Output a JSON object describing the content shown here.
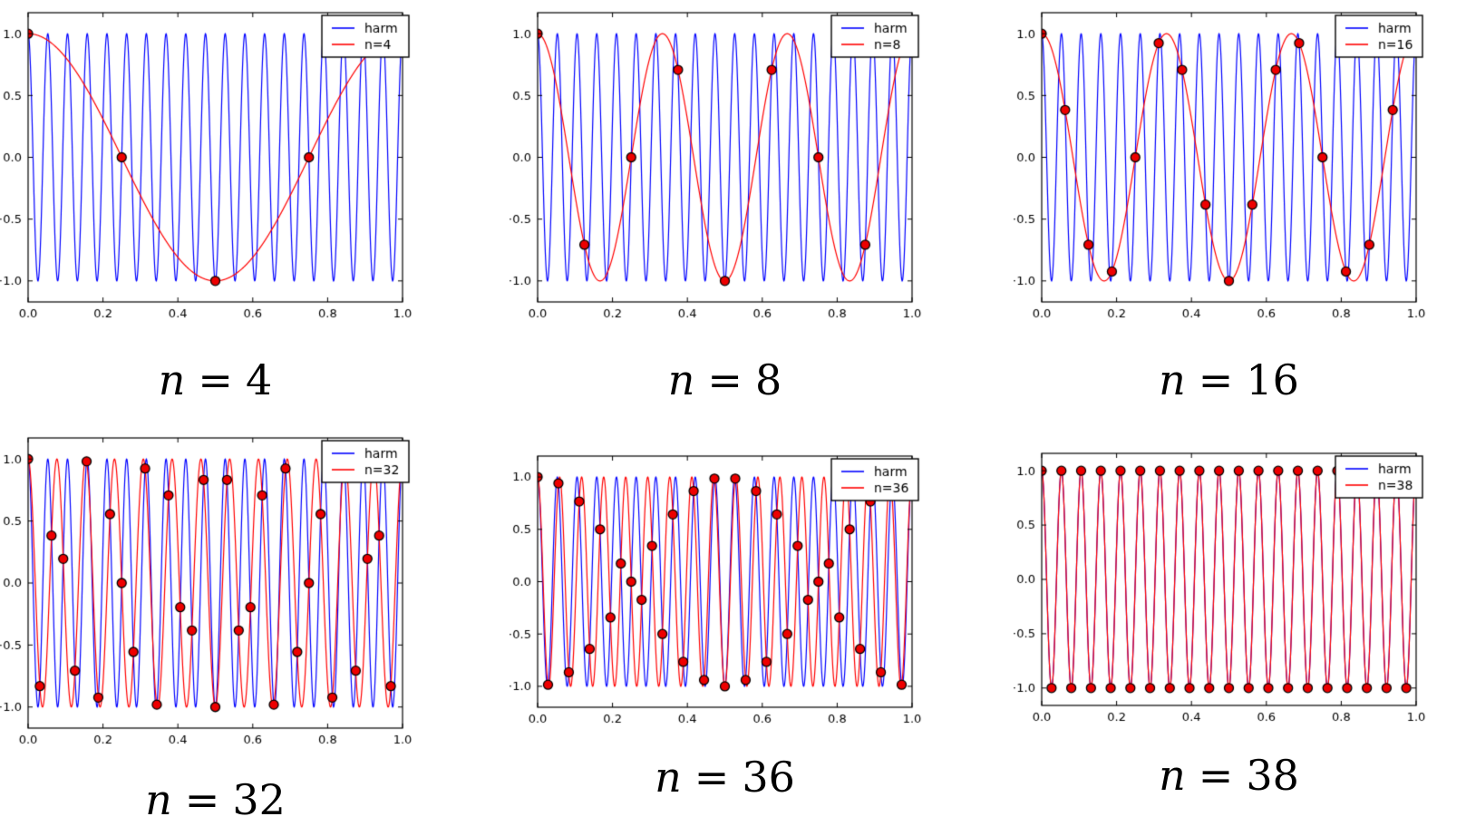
{
  "figure": {
    "background": "#ffffff",
    "harm_color": "#0000ff",
    "alias_color": "#ff0000",
    "marker_face": "#ee0000",
    "marker_edge": "#000000",
    "frame_color": "#000000",
    "tick_label_color": "#000000"
  },
  "chart_data": [
    {
      "type": "line",
      "caption": {
        "symbol": "n",
        "equals": "=",
        "value": "4"
      },
      "legend": {
        "position": "upper right",
        "entries": [
          {
            "label": "harm",
            "series": "harm"
          },
          {
            "label": "n=4",
            "series": "alias"
          }
        ]
      },
      "harm": {
        "name": "harm",
        "func": "cos(2*pi*f*x)",
        "freq": 19,
        "amplitude": 1
      },
      "alias": {
        "name": "n=4",
        "func": "cos(2*pi*f*x)",
        "freq": 1,
        "amplitude": 1
      },
      "n_samples": 4,
      "samples_x_rule": "x_k = k/n, k = 0..n",
      "samples_y": [
        1,
        0,
        -1,
        0,
        1
      ],
      "xlim": [
        0,
        1
      ],
      "ylim": [
        -1.17,
        1.17
      ],
      "grid": false,
      "x_tick_values": [
        0,
        0.2,
        0.4,
        0.6,
        0.8,
        1.0
      ],
      "x_tick_labels": [
        "0.0",
        "0.2",
        "0.4",
        "0.6",
        "0.8",
        "1.0"
      ],
      "y_tick_values": [
        1.0,
        0.5,
        0.0,
        -0.5,
        -1.0
      ],
      "y_tick_labels": [
        "1.0",
        "0.5",
        "0.0",
        "−0.5",
        "−1.0"
      ]
    },
    {
      "type": "line",
      "caption": {
        "symbol": "n",
        "equals": "=",
        "value": "8"
      },
      "legend": {
        "position": "upper right",
        "entries": [
          {
            "label": "harm",
            "series": "harm"
          },
          {
            "label": "n=8",
            "series": "alias"
          }
        ]
      },
      "harm": {
        "name": "harm",
        "func": "cos(2*pi*f*x)",
        "freq": 19,
        "amplitude": 1
      },
      "alias": {
        "name": "n=8",
        "func": "cos(2*pi*f*x)",
        "freq": 3,
        "amplitude": 1
      },
      "n_samples": 8,
      "samples_x_rule": "x_k = k/n, k = 0..n",
      "samples_y": [
        1,
        -0.7071,
        0,
        0.7071,
        -1,
        0.7071,
        0,
        -0.7071,
        1
      ],
      "xlim": [
        0,
        1
      ],
      "ylim": [
        -1.17,
        1.17
      ],
      "grid": false,
      "x_tick_values": [
        0,
        0.2,
        0.4,
        0.6,
        0.8,
        1.0
      ],
      "x_tick_labels": [
        "0.0",
        "0.2",
        "0.4",
        "0.6",
        "0.8",
        "1.0"
      ],
      "y_tick_values": [
        1.0,
        0.5,
        0.0,
        -0.5,
        -1.0
      ],
      "y_tick_labels": [
        "1.0",
        "0.5",
        "0.0",
        "−0.5",
        "−1.0"
      ]
    },
    {
      "type": "line",
      "caption": {
        "symbol": "n",
        "equals": "=",
        "value": "16"
      },
      "legend": {
        "position": "upper right",
        "entries": [
          {
            "label": "harm",
            "series": "harm"
          },
          {
            "label": "n=16",
            "series": "alias"
          }
        ]
      },
      "harm": {
        "name": "harm",
        "func": "cos(2*pi*f*x)",
        "freq": 19,
        "amplitude": 1
      },
      "alias": {
        "name": "n=16",
        "func": "cos(2*pi*f*x)",
        "freq": 3,
        "amplitude": 1
      },
      "n_samples": 16,
      "samples_x_rule": "x_k = k/n, k = 0..n",
      "samples_y": [
        1,
        0.3827,
        -0.7071,
        -0.9239,
        0,
        0.9239,
        0.7071,
        -0.3827,
        -1,
        -0.3827,
        0.7071,
        0.9239,
        0,
        -0.9239,
        -0.7071,
        0.3827,
        1
      ],
      "xlim": [
        0,
        1
      ],
      "ylim": [
        -1.17,
        1.17
      ],
      "grid": false,
      "x_tick_values": [
        0,
        0.2,
        0.4,
        0.6,
        0.8,
        1.0
      ],
      "x_tick_labels": [
        "0.0",
        "0.2",
        "0.4",
        "0.6",
        "0.8",
        "1.0"
      ],
      "y_tick_values": [
        1.0,
        0.5,
        0.0,
        -0.5,
        -1.0
      ],
      "y_tick_labels": [
        "1.0",
        "0.5",
        "0.0",
        "−0.5",
        "−1.0"
      ]
    },
    {
      "type": "line",
      "caption": {
        "symbol": "n",
        "equals": "=",
        "value": "32"
      },
      "legend": {
        "position": "upper right",
        "entries": [
          {
            "label": "harm",
            "series": "harm"
          },
          {
            "label": "n=32",
            "series": "alias"
          }
        ]
      },
      "harm": {
        "name": "harm",
        "func": "cos(2*pi*f*x)",
        "freq": 19,
        "amplitude": 1
      },
      "alias": {
        "name": "n=32",
        "func": "cos(2*pi*f*x)",
        "freq": 13,
        "amplitude": 1
      },
      "n_samples": 32,
      "samples_x_rule": "x_k = k/n, k = 0..n",
      "samples_y": [
        1,
        -0.8315,
        0.3827,
        0.1951,
        -0.7071,
        0.9808,
        -0.9239,
        0.5556,
        0,
        -0.5556,
        0.9239,
        -0.9808,
        0.7071,
        -0.1951,
        -0.3827,
        0.8315,
        -1,
        0.8315,
        -0.3827,
        -0.1951,
        0.7071,
        -0.9808,
        0.9239,
        -0.5556,
        0,
        0.5556,
        -0.9239,
        0.9808,
        -0.7071,
        0.1951,
        0.3827,
        -0.8315,
        1
      ],
      "xlim": [
        0,
        1
      ],
      "ylim": [
        -1.17,
        1.17
      ],
      "grid": false,
      "x_tick_values": [
        0,
        0.2,
        0.4,
        0.6,
        0.8,
        1.0
      ],
      "x_tick_labels": [
        "0.0",
        "0.2",
        "0.4",
        "0.6",
        "0.8",
        "1.0"
      ],
      "y_tick_values": [
        1.0,
        0.5,
        0.0,
        -0.5,
        -1.0
      ],
      "y_tick_labels": [
        "1.0",
        "0.5",
        "0.0",
        "−0.5",
        "−1.0"
      ]
    },
    {
      "type": "line",
      "caption": {
        "symbol": "n",
        "equals": "=",
        "value": "36"
      },
      "legend": {
        "position": "upper right",
        "entries": [
          {
            "label": "harm",
            "series": "harm"
          },
          {
            "label": "n=36",
            "series": "alias"
          }
        ]
      },
      "harm": {
        "name": "harm",
        "func": "cos(2*pi*f*x)",
        "freq": 19,
        "amplitude": 1
      },
      "alias": {
        "name": "n=36",
        "func": "cos(2*pi*f*x)",
        "freq": 17,
        "amplitude": 1
      },
      "n_samples": 36,
      "samples_x_rule": "x_k = k/n, k = 0..n",
      "samples_y": [
        1,
        -0.9848,
        0.9397,
        -0.866,
        0.766,
        -0.6428,
        0.5,
        -0.342,
        0.1736,
        0,
        -0.1736,
        0.342,
        -0.5,
        0.6428,
        -0.766,
        0.866,
        -0.9397,
        0.9848,
        -1,
        0.9848,
        -0.9397,
        0.866,
        -0.766,
        0.6428,
        -0.5,
        0.342,
        -0.1736,
        0,
        0.1736,
        -0.342,
        0.5,
        -0.6428,
        0.766,
        -0.866,
        0.9397,
        -0.9848,
        1
      ],
      "xlim": [
        0,
        1
      ],
      "ylim": [
        -1.2,
        1.2
      ],
      "grid": false,
      "x_tick_values": [
        0,
        0.2,
        0.4,
        0.6,
        0.8,
        1.0
      ],
      "x_tick_labels": [
        "0.0",
        "0.2",
        "0.4",
        "0.6",
        "0.8",
        "1.0"
      ],
      "y_tick_values": [
        1.0,
        0.5,
        0.0,
        -0.5,
        -1.0
      ],
      "y_tick_labels": [
        "1.0",
        "0.5",
        "0.0",
        "−0.5",
        "−1.0"
      ]
    },
    {
      "type": "line",
      "caption": {
        "symbol": "n",
        "equals": "=",
        "value": "38"
      },
      "legend": {
        "position": "upper right",
        "entries": [
          {
            "label": "harm",
            "series": "harm"
          },
          {
            "label": "n=38",
            "series": "alias"
          }
        ]
      },
      "harm": {
        "name": "harm",
        "func": "cos(2*pi*f*x)",
        "freq": 19,
        "amplitude": 1
      },
      "alias": {
        "name": "n=38",
        "func": "cos(2*pi*f*x)",
        "freq": 19,
        "amplitude": 1
      },
      "n_samples": 38,
      "samples_x_rule": "x_k = k/n, k = 0..n",
      "samples_y": [
        1,
        -1,
        1,
        -1,
        1,
        -1,
        1,
        -1,
        1,
        -1,
        1,
        -1,
        1,
        -1,
        1,
        -1,
        1,
        -1,
        1,
        -1,
        1,
        -1,
        1,
        -1,
        1,
        -1,
        1,
        -1,
        1,
        -1,
        1,
        -1,
        1,
        -1,
        1,
        -1,
        1,
        -1,
        1
      ],
      "xlim": [
        0,
        1
      ],
      "ylim": [
        -1.16,
        1.16
      ],
      "grid": false,
      "x_tick_values": [
        0,
        0.2,
        0.4,
        0.6,
        0.8,
        1.0
      ],
      "x_tick_labels": [
        "0.0",
        "0.2",
        "0.4",
        "0.6",
        "0.8",
        "1.0"
      ],
      "y_tick_values": [
        1.0,
        0.5,
        0.0,
        -0.5,
        -1.0
      ],
      "y_tick_labels": [
        "1.0",
        "0.5",
        "0.0",
        "−0.5",
        "−1.0"
      ]
    }
  ]
}
